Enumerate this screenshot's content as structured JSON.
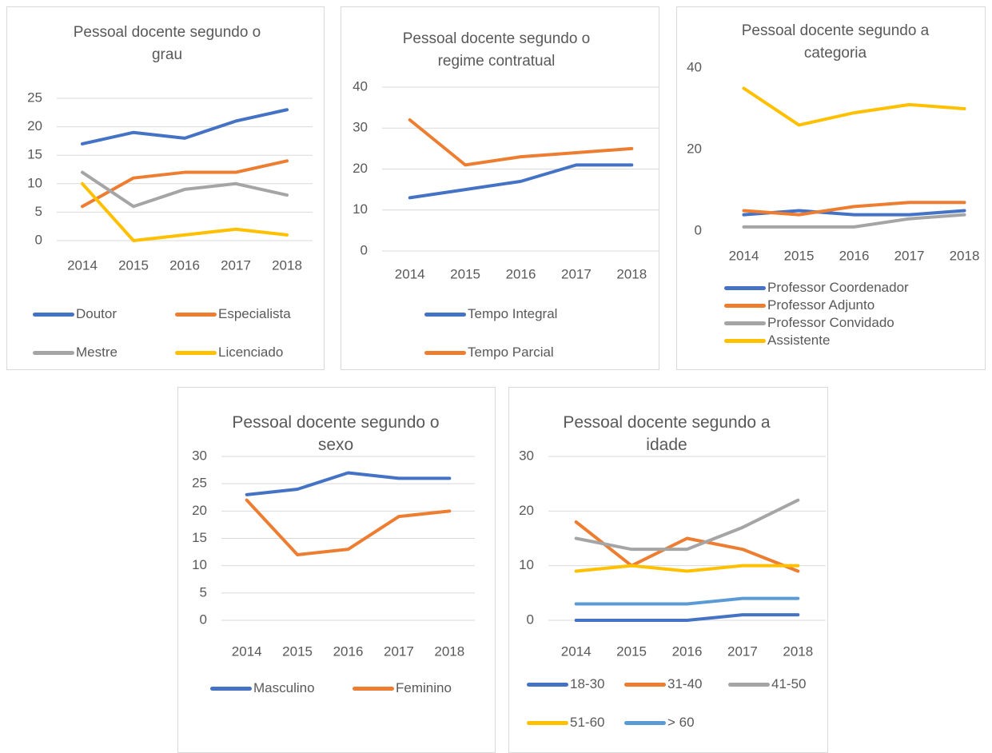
{
  "chart_data": [
    {
      "type": "line",
      "title": "Pessoal docente segundo o grau",
      "categories": [
        "2014",
        "2015",
        "2016",
        "2017",
        "2018"
      ],
      "series": [
        {
          "name": "Doutor",
          "color": "#4472c4",
          "values": [
            17,
            19,
            18,
            21,
            23
          ]
        },
        {
          "name": "Especialista",
          "color": "#ed7d31",
          "values": [
            6,
            11,
            12,
            12,
            14
          ]
        },
        {
          "name": "Mestre",
          "color": "#a5a5a5",
          "values": [
            12,
            6,
            9,
            10,
            8
          ]
        },
        {
          "name": "Licenciado",
          "color": "#ffc000",
          "values": [
            10,
            0,
            1,
            2,
            1
          ]
        }
      ],
      "ylim": [
        0,
        25
      ],
      "yticks": [
        0,
        5,
        10,
        15,
        20,
        25
      ],
      "grid": true
    },
    {
      "type": "line",
      "title": "Pessoal docente segundo o regime contratual",
      "categories": [
        "2014",
        "2015",
        "2016",
        "2017",
        "2018"
      ],
      "series": [
        {
          "name": "Tempo Integral",
          "color": "#4472c4",
          "values": [
            13,
            15,
            17,
            21,
            21
          ]
        },
        {
          "name": "Tempo Parcial",
          "color": "#ed7d31",
          "values": [
            32,
            21,
            23,
            24,
            25
          ]
        }
      ],
      "ylim": [
        0,
        40
      ],
      "yticks": [
        0,
        10,
        20,
        30,
        40
      ],
      "grid": true
    },
    {
      "type": "line",
      "title": "Pessoal docente segundo a categoria",
      "categories": [
        "2014",
        "2015",
        "2016",
        "2017",
        "2018"
      ],
      "series": [
        {
          "name": "Professor Coordenador",
          "color": "#4472c4",
          "values": [
            4,
            5,
            4,
            4,
            5
          ]
        },
        {
          "name": "Professor Adjunto",
          "color": "#ed7d31",
          "values": [
            5,
            4,
            6,
            7,
            7
          ]
        },
        {
          "name": "Professor Convidado",
          "color": "#a5a5a5",
          "values": [
            1,
            1,
            1,
            3,
            4
          ]
        },
        {
          "name": "Assistente",
          "color": "#ffc000",
          "values": [
            35,
            26,
            29,
            31,
            30
          ]
        }
      ],
      "ylim": [
        0,
        40
      ],
      "yticks": [
        0,
        20,
        40
      ],
      "grid": false
    },
    {
      "type": "line",
      "title": "Pessoal docente segundo o sexo",
      "categories": [
        "2014",
        "2015",
        "2016",
        "2017",
        "2018"
      ],
      "series": [
        {
          "name": "Masculino",
          "color": "#4472c4",
          "values": [
            23,
            24,
            27,
            26,
            26
          ]
        },
        {
          "name": "Feminino",
          "color": "#ed7d31",
          "values": [
            22,
            12,
            13,
            19,
            20
          ]
        }
      ],
      "ylim": [
        0,
        30
      ],
      "yticks": [
        0,
        5,
        10,
        15,
        20,
        25,
        30
      ],
      "grid": true
    },
    {
      "type": "line",
      "title": "Pessoal docente segundo a idade",
      "categories": [
        "2014",
        "2015",
        "2016",
        "2017",
        "2018"
      ],
      "series": [
        {
          "name": "18-30",
          "color": "#4472c4",
          "values": [
            0,
            0,
            0,
            1,
            1
          ]
        },
        {
          "name": "31-40",
          "color": "#ed7d31",
          "values": [
            18,
            10,
            15,
            13,
            9
          ]
        },
        {
          "name": "41-50",
          "color": "#a5a5a5",
          "values": [
            15,
            13,
            13,
            17,
            22
          ]
        },
        {
          "name": "51-60",
          "color": "#ffc000",
          "values": [
            9,
            10,
            9,
            10,
            10
          ]
        },
        {
          "name": "> 60",
          "color": "#5b9bd5",
          "values": [
            3,
            3,
            3,
            4,
            4
          ]
        }
      ],
      "ylim": [
        0,
        30
      ],
      "yticks": [
        0,
        10,
        20,
        30
      ],
      "grid": true
    }
  ]
}
